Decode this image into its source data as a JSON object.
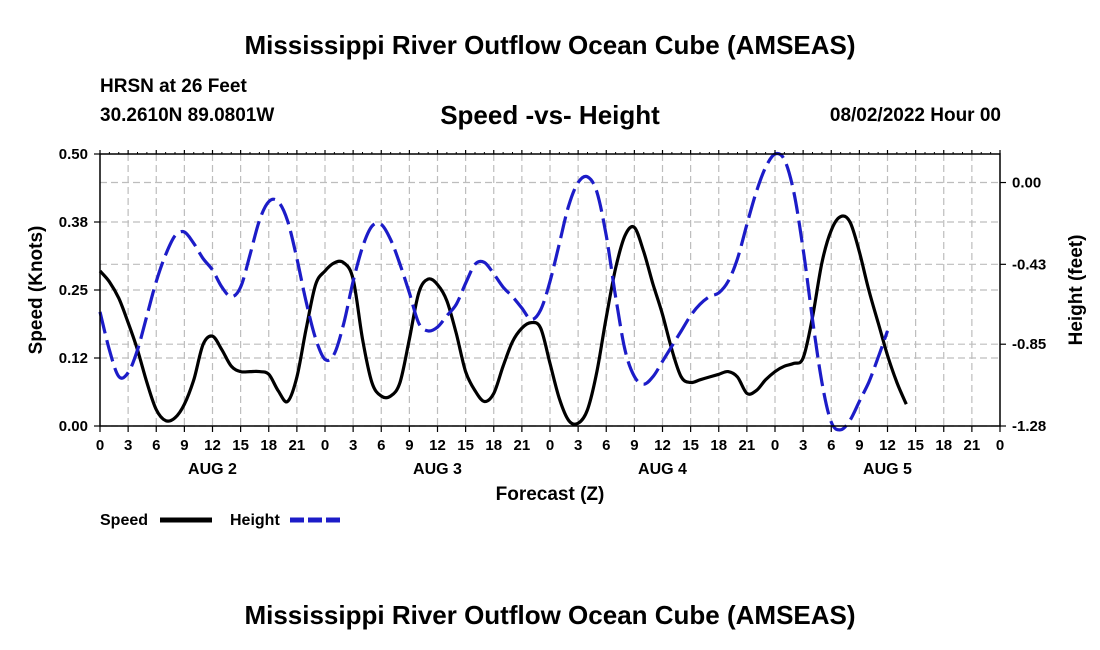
{
  "header": {
    "title": "Mississippi River Outflow Ocean Cube (AMSEAS)",
    "station": "HRSN at 26 Feet",
    "coords": "30.2610N  89.0801W",
    "subtitle": "Speed -vs- Height",
    "datetime": "08/02/2022 Hour 00"
  },
  "footer": {
    "title": "Mississippi River Outflow Ocean Cube (AMSEAS)"
  },
  "chart_data": {
    "type": "line",
    "title": "Speed -vs- Height",
    "xlabel": "Forecast (Z)",
    "ylabel": "Speed (Knots)",
    "y2label": "Height (feet)",
    "xlim": [
      0,
      96
    ],
    "ylim": [
      0,
      0.5
    ],
    "y2lim": [
      -1.28,
      0.15
    ],
    "grid": true,
    "x_ticks": [
      0,
      3,
      6,
      9,
      12,
      15,
      18,
      21,
      24,
      27,
      30,
      33,
      36,
      39,
      42,
      45,
      48,
      51,
      54,
      57,
      60,
      63,
      66,
      69,
      72,
      75,
      78,
      81,
      84,
      87,
      90,
      93,
      96
    ],
    "x_tick_labels": [
      "0",
      "3",
      "6",
      "9",
      "12",
      "15",
      "18",
      "21",
      "0",
      "3",
      "6",
      "9",
      "12",
      "15",
      "18",
      "21",
      "0",
      "3",
      "6",
      "9",
      "12",
      "15",
      "18",
      "21",
      "0",
      "3",
      "6",
      "9",
      "12",
      "15",
      "18",
      "21",
      "0"
    ],
    "day_labels": [
      {
        "hour": 12,
        "label": "AUG 2"
      },
      {
        "hour": 36,
        "label": "AUG 3"
      },
      {
        "hour": 60,
        "label": "AUG 4"
      },
      {
        "hour": 84,
        "label": "AUG 5"
      }
    ],
    "y_ticks": [
      0.0,
      0.125,
      0.25,
      0.375,
      0.5
    ],
    "y_tick_labels": [
      "0.00",
      "0.12",
      "0.25",
      "0.38",
      "0.50"
    ],
    "y2_ticks": [
      0.0,
      -0.43,
      -0.85,
      -1.28
    ],
    "y2_tick_labels": [
      "0.00",
      "-0.43",
      "-0.85",
      "-1.28"
    ],
    "legend": [
      {
        "name": "Speed",
        "color": "#000000",
        "style": "solid"
      },
      {
        "name": "Height",
        "color": "#1c1cc8",
        "style": "dashed"
      }
    ],
    "legend_position": "bottom-left",
    "series": [
      {
        "name": "Speed",
        "axis": "left",
        "color": "#000000",
        "style": "solid",
        "points": [
          [
            0,
            0.285
          ],
          [
            1,
            0.265
          ],
          [
            2,
            0.235
          ],
          [
            3,
            0.19
          ],
          [
            4,
            0.14
          ],
          [
            5,
            0.08
          ],
          [
            6,
            0.03
          ],
          [
            7,
            0.01
          ],
          [
            8,
            0.015
          ],
          [
            9,
            0.04
          ],
          [
            10,
            0.085
          ],
          [
            11,
            0.15
          ],
          [
            12,
            0.165
          ],
          [
            13,
            0.14
          ],
          [
            14,
            0.11
          ],
          [
            15,
            0.1
          ],
          [
            16,
            0.1
          ],
          [
            17,
            0.1
          ],
          [
            18,
            0.095
          ],
          [
            19,
            0.065
          ],
          [
            20,
            0.045
          ],
          [
            21,
            0.09
          ],
          [
            22,
            0.18
          ],
          [
            23,
            0.26
          ],
          [
            24,
            0.285
          ],
          [
            25,
            0.3
          ],
          [
            26,
            0.3
          ],
          [
            27,
            0.27
          ],
          [
            28,
            0.16
          ],
          [
            29,
            0.08
          ],
          [
            30,
            0.055
          ],
          [
            31,
            0.055
          ],
          [
            32,
            0.08
          ],
          [
            33,
            0.16
          ],
          [
            34,
            0.245
          ],
          [
            35,
            0.27
          ],
          [
            36,
            0.26
          ],
          [
            37,
            0.23
          ],
          [
            38,
            0.17
          ],
          [
            39,
            0.1
          ],
          [
            40,
            0.065
          ],
          [
            41,
            0.045
          ],
          [
            42,
            0.06
          ],
          [
            43,
            0.11
          ],
          [
            44,
            0.155
          ],
          [
            45,
            0.18
          ],
          [
            46,
            0.19
          ],
          [
            47,
            0.18
          ],
          [
            48,
            0.115
          ],
          [
            49,
            0.05
          ],
          [
            50,
            0.01
          ],
          [
            51,
            0.005
          ],
          [
            52,
            0.03
          ],
          [
            53,
            0.1
          ],
          [
            54,
            0.2
          ],
          [
            55,
            0.29
          ],
          [
            56,
            0.35
          ],
          [
            57,
            0.365
          ],
          [
            58,
            0.32
          ],
          [
            59,
            0.26
          ],
          [
            60,
            0.205
          ],
          [
            61,
            0.14
          ],
          [
            62,
            0.09
          ],
          [
            63,
            0.08
          ],
          [
            64,
            0.085
          ],
          [
            65,
            0.09
          ],
          [
            66,
            0.095
          ],
          [
            67,
            0.1
          ],
          [
            68,
            0.09
          ],
          [
            69,
            0.06
          ],
          [
            70,
            0.065
          ],
          [
            71,
            0.085
          ],
          [
            72,
            0.1
          ],
          [
            73,
            0.11
          ],
          [
            74,
            0.115
          ],
          [
            75,
            0.125
          ],
          [
            76,
            0.2
          ],
          [
            77,
            0.3
          ],
          [
            78,
            0.36
          ],
          [
            79,
            0.385
          ],
          [
            80,
            0.375
          ],
          [
            81,
            0.32
          ],
          [
            82,
            0.25
          ],
          [
            83,
            0.19
          ],
          [
            84,
            0.13
          ],
          [
            85,
            0.08
          ],
          [
            86,
            0.04
          ]
        ]
      },
      {
        "name": "Height",
        "axis": "right",
        "color": "#1c1cc8",
        "style": "dashed",
        "points": [
          [
            0,
            -0.68
          ],
          [
            1,
            -0.88
          ],
          [
            2,
            -1.02
          ],
          [
            3,
            -1.0
          ],
          [
            4,
            -0.88
          ],
          [
            5,
            -0.7
          ],
          [
            6,
            -0.52
          ],
          [
            7,
            -0.38
          ],
          [
            8,
            -0.28
          ],
          [
            9,
            -0.26
          ],
          [
            10,
            -0.32
          ],
          [
            11,
            -0.4
          ],
          [
            12,
            -0.46
          ],
          [
            13,
            -0.55
          ],
          [
            14,
            -0.6
          ],
          [
            15,
            -0.55
          ],
          [
            16,
            -0.38
          ],
          [
            17,
            -0.2
          ],
          [
            18,
            -0.1
          ],
          [
            19,
            -0.1
          ],
          [
            20,
            -0.2
          ],
          [
            21,
            -0.4
          ],
          [
            22,
            -0.63
          ],
          [
            23,
            -0.82
          ],
          [
            24,
            -0.93
          ],
          [
            25,
            -0.9
          ],
          [
            26,
            -0.74
          ],
          [
            27,
            -0.52
          ],
          [
            28,
            -0.34
          ],
          [
            29,
            -0.23
          ],
          [
            30,
            -0.22
          ],
          [
            31,
            -0.3
          ],
          [
            32,
            -0.43
          ],
          [
            33,
            -0.58
          ],
          [
            34,
            -0.74
          ],
          [
            35,
            -0.78
          ],
          [
            36,
            -0.76
          ],
          [
            37,
            -0.7
          ],
          [
            38,
            -0.64
          ],
          [
            39,
            -0.53
          ],
          [
            40,
            -0.43
          ],
          [
            41,
            -0.42
          ],
          [
            42,
            -0.48
          ],
          [
            43,
            -0.55
          ],
          [
            44,
            -0.6
          ],
          [
            45,
            -0.66
          ],
          [
            46,
            -0.72
          ],
          [
            47,
            -0.67
          ],
          [
            48,
            -0.52
          ],
          [
            49,
            -0.32
          ],
          [
            50,
            -0.12
          ],
          [
            51,
            0.0
          ],
          [
            52,
            0.03
          ],
          [
            53,
            -0.05
          ],
          [
            54,
            -0.28
          ],
          [
            55,
            -0.6
          ],
          [
            56,
            -0.88
          ],
          [
            57,
            -1.02
          ],
          [
            58,
            -1.06
          ],
          [
            59,
            -1.02
          ],
          [
            60,
            -0.94
          ],
          [
            61,
            -0.86
          ],
          [
            62,
            -0.78
          ],
          [
            63,
            -0.7
          ],
          [
            64,
            -0.64
          ],
          [
            65,
            -0.6
          ],
          [
            66,
            -0.58
          ],
          [
            67,
            -0.52
          ],
          [
            68,
            -0.4
          ],
          [
            69,
            -0.22
          ],
          [
            70,
            -0.05
          ],
          [
            71,
            0.08
          ],
          [
            72,
            0.15
          ],
          [
            73,
            0.12
          ],
          [
            74,
            -0.05
          ],
          [
            75,
            -0.35
          ],
          [
            76,
            -0.72
          ],
          [
            77,
            -1.05
          ],
          [
            78,
            -1.26
          ],
          [
            79,
            -1.3
          ],
          [
            80,
            -1.25
          ],
          [
            81,
            -1.15
          ],
          [
            82,
            -1.05
          ],
          [
            83,
            -0.92
          ],
          [
            84,
            -0.78
          ]
        ]
      }
    ]
  }
}
